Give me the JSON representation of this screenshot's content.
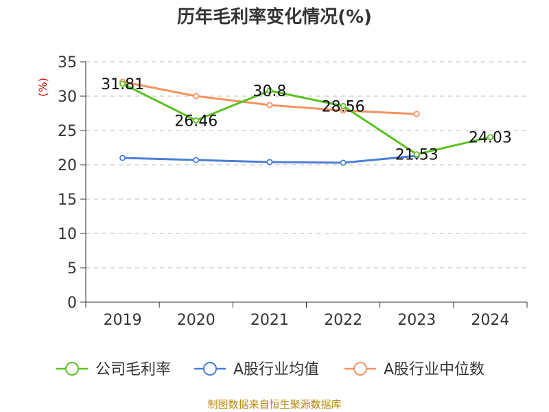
{
  "chart_data": {
    "type": "line",
    "title": "历年毛利率变化情况(%)",
    "ylabel": "(%)",
    "xlabel": "",
    "categories": [
      "2019",
      "2020",
      "2021",
      "2022",
      "2023",
      "2024"
    ],
    "ylim": [
      0,
      35
    ],
    "yticks": [
      0,
      5,
      10,
      15,
      20,
      25,
      30,
      35
    ],
    "grid": true,
    "legend_position": "bottom",
    "series": [
      {
        "name": "公司毛利率",
        "color": "#5ac121",
        "values": [
          31.81,
          26.46,
          30.8,
          28.56,
          21.53,
          24.03
        ],
        "labels": [
          "31.81",
          "26.46",
          "30.8",
          "28.56",
          "21.53",
          "24.03"
        ]
      },
      {
        "name": "A股行业均值",
        "color": "#4a7fd8",
        "values": [
          21.0,
          20.7,
          20.4,
          20.3,
          21.3,
          null
        ]
      },
      {
        "name": "A股行业中位数",
        "color": "#f5925e",
        "values": [
          32.1,
          30.0,
          28.7,
          27.9,
          27.4,
          null
        ]
      }
    ]
  },
  "source": "制图数据来自恒生聚源数据库"
}
